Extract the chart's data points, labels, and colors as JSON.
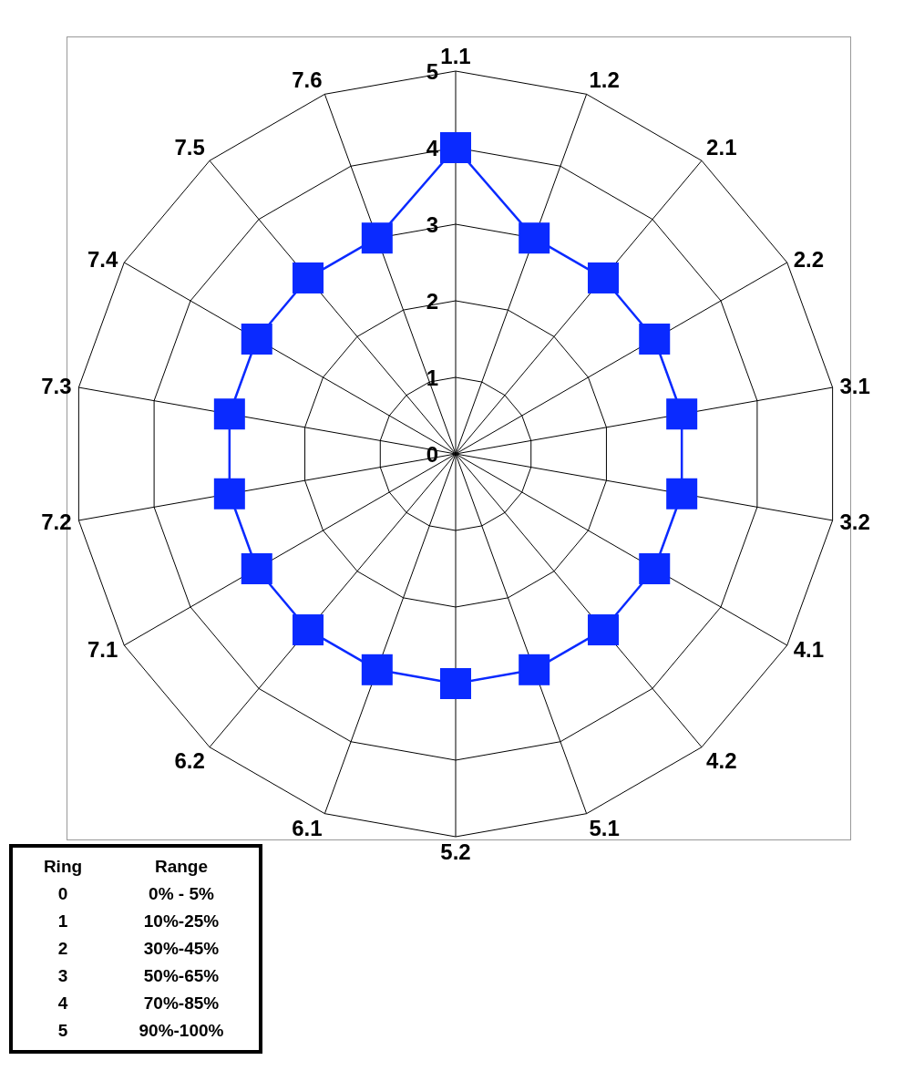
{
  "chart_data": {
    "type": "radar",
    "categories": [
      "1.1",
      "1.2",
      "2.1",
      "2.2",
      "3.1",
      "3.2",
      "4.1",
      "4.2",
      "5.1",
      "5.2",
      "6.1",
      "6.2",
      "7.1",
      "7.2",
      "7.3",
      "7.4",
      "7.5",
      "7.6"
    ],
    "series": [
      {
        "color": "#0a2aff",
        "values": [
          4,
          3,
          3,
          3,
          3,
          3,
          3,
          3,
          3,
          3,
          3,
          3,
          3,
          3,
          3,
          3,
          3,
          3
        ]
      }
    ],
    "ylim": [
      0,
      5
    ],
    "yticks": [
      0,
      1,
      2,
      3,
      4,
      5
    ],
    "grid": true,
    "legend": false,
    "marker": "square",
    "line_style": "solid",
    "annotations": [
      "Ring",
      "Range",
      "0",
      "0% - 5%",
      "1",
      "10%-25%",
      "2",
      "30%-45%",
      "3",
      "50%-65%",
      "4",
      "70%-85%",
      "5",
      "90%-100%"
    ]
  }
}
